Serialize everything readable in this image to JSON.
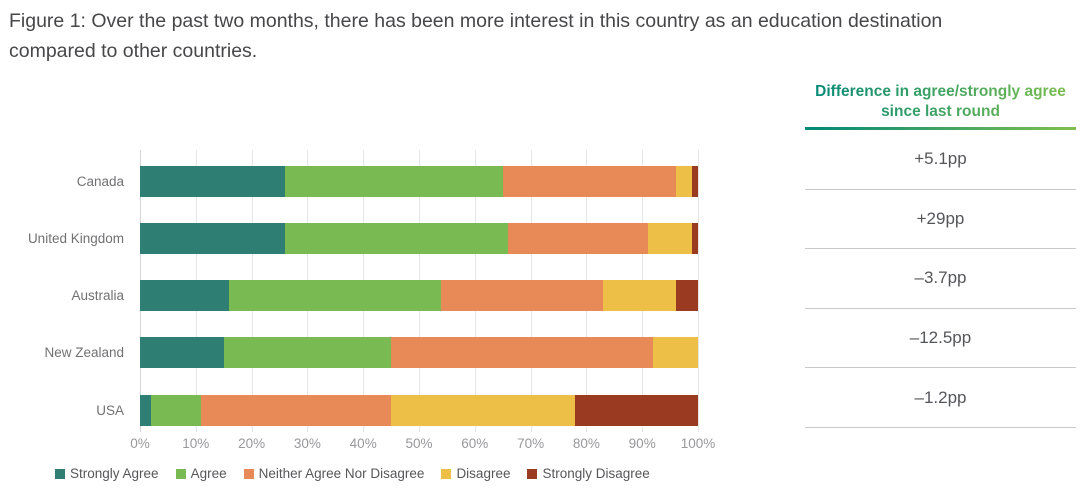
{
  "figure": {
    "title": "Figure 1: Over the past two months, there has been more interest in this country as an education destination compared to other countries."
  },
  "chart_data": {
    "type": "bar",
    "orientation": "horizontal",
    "stacked": true,
    "title": "",
    "xlabel": "",
    "ylabel": "",
    "xlim": [
      0,
      100
    ],
    "grid": true,
    "legend_position": "bottom",
    "categories": [
      "Canada",
      "United Kingdom",
      "Australia",
      "New Zealand",
      "USA"
    ],
    "series": [
      {
        "name": "Strongly Agree",
        "color": "#2e7e73",
        "values": [
          26,
          26,
          16,
          15,
          2
        ]
      },
      {
        "name": "Agree",
        "color": "#79ba52",
        "values": [
          39,
          40,
          38,
          30,
          9
        ]
      },
      {
        "name": "Neither Agree Nor Disagree",
        "color": "#e88a58",
        "values": [
          31,
          25,
          29,
          47,
          34
        ]
      },
      {
        "name": "Disagree",
        "color": "#eebf46",
        "values": [
          3,
          8,
          13,
          8,
          33
        ]
      },
      {
        "name": "Strongly Disagree",
        "color": "#993a21",
        "values": [
          1,
          1,
          4,
          0,
          22
        ]
      }
    ],
    "x_ticks": [
      "0%",
      "10%",
      "20%",
      "30%",
      "40%",
      "50%",
      "60%",
      "70%",
      "80%",
      "90%",
      "100%"
    ]
  },
  "diff_table": {
    "header": "Difference in agree/strongly agree since last round",
    "gradient": [
      "#008878",
      "#80bf4e"
    ],
    "values": [
      "+5.1pp",
      "+29pp",
      "–3.7pp",
      "–12.5pp",
      "–1.2pp"
    ]
  }
}
